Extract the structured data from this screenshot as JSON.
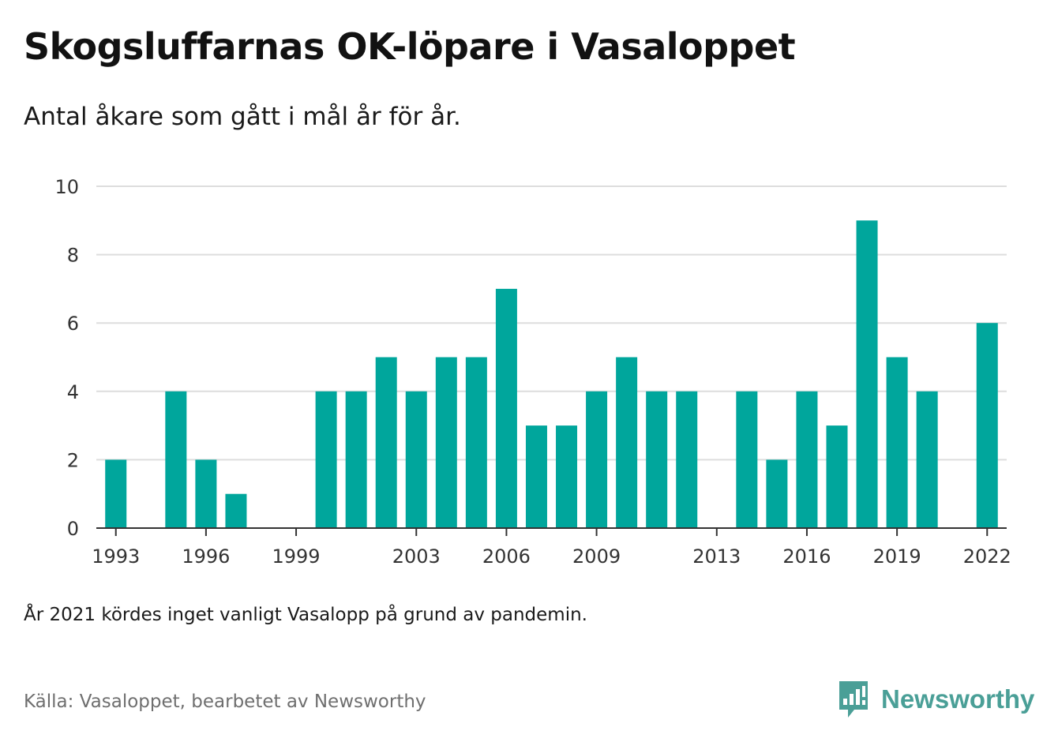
{
  "title": "Skogsluffarnas OK-löpare i Vasaloppet",
  "subtitle": "Antal åkare som gått i mål år för år.",
  "note": "År 2021 kördes inget vanligt Vasalopp på grund av pandemin.",
  "source": "Källa: Vasaloppet, bearbetet av Newsworthy",
  "brand": {
    "name": "Newsworthy",
    "icon": "newsworthy-logo-icon",
    "color": "#4a9f97"
  },
  "colors": {
    "bar": "#00a69c",
    "grid": "#dddddd",
    "axis": "#333333"
  },
  "chart_data": {
    "type": "bar",
    "x": [
      1993,
      1994,
      1995,
      1996,
      1997,
      1998,
      1999,
      2000,
      2001,
      2002,
      2003,
      2004,
      2005,
      2006,
      2007,
      2008,
      2009,
      2010,
      2011,
      2012,
      2013,
      2014,
      2015,
      2016,
      2017,
      2018,
      2019,
      2020,
      2021,
      2022
    ],
    "values": [
      2,
      0,
      4,
      2,
      1,
      0,
      0,
      4,
      4,
      5,
      4,
      5,
      5,
      7,
      3,
      3,
      4,
      5,
      4,
      4,
      0,
      4,
      2,
      4,
      3,
      9,
      5,
      4,
      0,
      6
    ],
    "xticks": [
      1993,
      1996,
      1999,
      2003,
      2006,
      2009,
      2013,
      2016,
      2019,
      2022
    ],
    "yticks": [
      0,
      2,
      4,
      6,
      8,
      10
    ],
    "ylim": [
      0,
      10
    ],
    "xlabel": "",
    "ylabel": "",
    "grid": true
  }
}
